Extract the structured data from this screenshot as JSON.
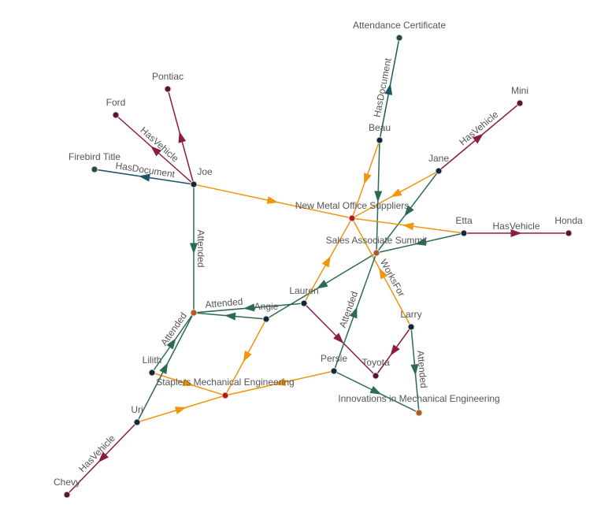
{
  "colors": {
    "attended": "#2a6b52",
    "hasvehicle": "#8b1c3e",
    "hasdocument": "#1b5566",
    "orange": "#f0950e",
    "person": "#13263a",
    "organization": "#b01c1c",
    "event": "#b5581f",
    "vehicle": "#5c1238",
    "document": "#234a3d"
  },
  "nodes": [
    {
      "id": "attcert",
      "label": "Attendance Certificate",
      "type": "document"
    },
    {
      "id": "pontiac",
      "label": "Pontiac",
      "type": "vehicle"
    },
    {
      "id": "ford",
      "label": "Ford",
      "type": "vehicle"
    },
    {
      "id": "mini",
      "label": "Mini",
      "type": "vehicle"
    },
    {
      "id": "beau",
      "label": "Beau",
      "type": "person"
    },
    {
      "id": "jane",
      "label": "Jane",
      "type": "person"
    },
    {
      "id": "firebird",
      "label": "Firebird Title",
      "type": "document"
    },
    {
      "id": "joe",
      "label": "Joe",
      "type": "person"
    },
    {
      "id": "newmetal",
      "label": "New Metal Office Suppliers",
      "type": "organization"
    },
    {
      "id": "etta",
      "label": "Etta",
      "type": "person"
    },
    {
      "id": "honda",
      "label": "Honda",
      "type": "vehicle"
    },
    {
      "id": "summit",
      "label": "Sales Associate Summit",
      "type": "event"
    },
    {
      "id": "lauren",
      "label": "Lauren",
      "type": "person"
    },
    {
      "id": "event1",
      "label": "",
      "type": "event"
    },
    {
      "id": "angie",
      "label": "Angie",
      "type": "person"
    },
    {
      "id": "larry",
      "label": "Larry",
      "type": "person"
    },
    {
      "id": "lilith",
      "label": "Lilith",
      "type": "person"
    },
    {
      "id": "persie",
      "label": "Persie",
      "type": "person"
    },
    {
      "id": "toyota",
      "label": "Toyota",
      "type": "vehicle"
    },
    {
      "id": "staplers",
      "label": "Staplers Mechanical Engineering",
      "type": "organization"
    },
    {
      "id": "uri",
      "label": "Uri",
      "type": "person"
    },
    {
      "id": "innov",
      "label": "Innovations in Mechanical Engineering",
      "type": "event"
    },
    {
      "id": "chevy",
      "label": "Chevy",
      "type": "vehicle"
    }
  ],
  "edges": [
    {
      "from": "beau",
      "to": "attcert",
      "label": "HasDocument",
      "kind": "hasdocument"
    },
    {
      "from": "joe",
      "to": "pontiac",
      "label": "",
      "kind": "hasvehicle"
    },
    {
      "from": "joe",
      "to": "ford",
      "label": "HasVehicle",
      "kind": "hasvehicle"
    },
    {
      "from": "joe",
      "to": "firebird",
      "label": "HasDocument",
      "kind": "hasdocument"
    },
    {
      "from": "joe",
      "to": "newmetal",
      "label": "",
      "kind": "orange"
    },
    {
      "from": "joe",
      "to": "event1",
      "label": "Attended",
      "kind": "attended"
    },
    {
      "from": "jane",
      "to": "mini",
      "label": "HasVehicle",
      "kind": "hasvehicle"
    },
    {
      "from": "jane",
      "to": "newmetal",
      "label": "",
      "kind": "orange"
    },
    {
      "from": "jane",
      "to": "summit",
      "label": "",
      "kind": "attended"
    },
    {
      "from": "beau",
      "to": "newmetal",
      "label": "",
      "kind": "orange"
    },
    {
      "from": "beau",
      "to": "summit",
      "label": "",
      "kind": "attended"
    },
    {
      "from": "etta",
      "to": "honda",
      "label": "HasVehicle",
      "kind": "hasvehicle"
    },
    {
      "from": "etta",
      "to": "newmetal",
      "label": "",
      "kind": "orange"
    },
    {
      "from": "etta",
      "to": "summit",
      "label": "",
      "kind": "attended"
    },
    {
      "from": "summit",
      "to": "angie",
      "label": "",
      "kind": "attended"
    },
    {
      "from": "larry",
      "to": "newmetal",
      "label": "WorksFor",
      "kind": "orange"
    },
    {
      "from": "lauren",
      "to": "newmetal",
      "label": "",
      "kind": "orange"
    },
    {
      "from": "lauren",
      "to": "toyota",
      "label": "",
      "kind": "hasvehicle"
    },
    {
      "from": "lauren",
      "to": "event1",
      "label": "Attended",
      "kind": "attended"
    },
    {
      "from": "angie",
      "to": "event1",
      "label": "",
      "kind": "attended"
    },
    {
      "from": "angie",
      "to": "staplers",
      "label": "",
      "kind": "orange"
    },
    {
      "from": "larry",
      "to": "toyota",
      "label": "",
      "kind": "hasvehicle"
    },
    {
      "from": "larry",
      "to": "innov",
      "label": "Attended",
      "kind": "attended"
    },
    {
      "from": "persie",
      "to": "innov",
      "label": "",
      "kind": "attended"
    },
    {
      "from": "persie",
      "to": "summit",
      "label": "Attended",
      "kind": "attended"
    },
    {
      "from": "persie",
      "to": "staplers",
      "label": "",
      "kind": "orange"
    },
    {
      "from": "lilith",
      "to": "staplers",
      "label": "",
      "kind": "orange"
    },
    {
      "from": "lilith",
      "to": "event1",
      "label": "Attended",
      "kind": "attended"
    },
    {
      "from": "uri",
      "to": "event1",
      "label": "",
      "kind": "attended"
    },
    {
      "from": "uri",
      "to": "staplers",
      "label": "",
      "kind": "orange"
    },
    {
      "from": "uri",
      "to": "chevy",
      "label": "HasVehicle",
      "kind": "hasvehicle"
    }
  ]
}
